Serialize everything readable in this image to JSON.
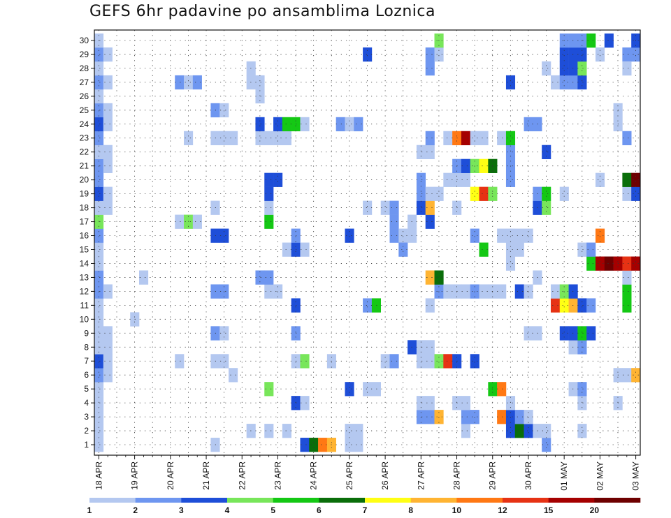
{
  "title": "GEFS 6hr padavine po ansamblima Loznica",
  "chart_data": {
    "type": "heatmap",
    "title": "GEFS 6hr padavine po ansamblima Loznica",
    "y_members": [
      1,
      2,
      3,
      4,
      5,
      6,
      7,
      8,
      9,
      10,
      11,
      12,
      13,
      14,
      15,
      16,
      17,
      18,
      19,
      20,
      21,
      22,
      23,
      24,
      25,
      26,
      27,
      28,
      29,
      30
    ],
    "x_tick_labels": [
      "18 APR",
      "19 APR",
      "20 APR",
      "21 APR",
      "22 APR",
      "23 APR",
      "24 APR",
      "25 APR",
      "26 APR",
      "27 APR",
      "28 APR",
      "29 APR",
      "30 APR",
      "01 MAY",
      "02 MAY",
      "03 MAY"
    ],
    "x_steps": 60,
    "color_scale": {
      "labels": [
        "1",
        "2",
        "3",
        "4",
        "5",
        "6",
        "7",
        "8",
        "10",
        "12",
        "15",
        "20"
      ],
      "colors": [
        "#b4c8f0",
        "#6e96f0",
        "#1e4ed8",
        "#78e65a",
        "#14c814",
        "#0a6e0a",
        "#ffff14",
        "#ffb432",
        "#ff7814",
        "#e63214",
        "#a50000",
        "#6e0000"
      ]
    },
    "cells": [
      [
        0,
        1,
        1
      ],
      [
        0,
        2,
        1
      ],
      [
        0,
        3,
        1
      ],
      [
        0,
        4,
        1
      ],
      [
        0,
        5,
        1
      ],
      [
        0,
        6,
        2
      ],
      [
        0,
        7,
        3
      ],
      [
        0,
        8,
        1
      ],
      [
        0,
        9,
        1
      ],
      [
        0,
        10,
        1
      ],
      [
        0,
        11,
        1
      ],
      [
        0,
        12,
        2
      ],
      [
        0,
        13,
        2
      ],
      [
        0,
        14,
        1
      ],
      [
        0,
        15,
        1
      ],
      [
        0,
        16,
        2
      ],
      [
        0,
        17,
        4
      ],
      [
        0,
        18,
        1
      ],
      [
        0,
        19,
        3
      ],
      [
        0,
        20,
        2
      ],
      [
        0,
        21,
        2
      ],
      [
        0,
        22,
        1
      ],
      [
        0,
        23,
        2
      ],
      [
        0,
        24,
        3
      ],
      [
        0,
        25,
        2
      ],
      [
        0,
        26,
        1
      ],
      [
        0,
        27,
        2
      ],
      [
        0,
        28,
        1
      ],
      [
        0,
        29,
        2
      ],
      [
        0,
        30,
        1
      ],
      [
        1,
        6,
        1
      ],
      [
        1,
        7,
        1
      ],
      [
        1,
        8,
        1
      ],
      [
        1,
        9,
        1
      ],
      [
        1,
        12,
        1
      ],
      [
        1,
        18,
        1
      ],
      [
        1,
        19,
        1
      ],
      [
        1,
        21,
        1
      ],
      [
        1,
        22,
        1
      ],
      [
        1,
        24,
        1
      ],
      [
        1,
        25,
        1
      ],
      [
        1,
        27,
        1
      ],
      [
        1,
        29,
        1
      ],
      [
        4,
        10,
        1
      ],
      [
        5,
        13,
        1
      ],
      [
        9,
        7,
        1
      ],
      [
        9,
        17,
        1
      ],
      [
        9,
        27,
        2
      ],
      [
        10,
        17,
        4
      ],
      [
        10,
        23,
        1
      ],
      [
        10,
        27,
        1
      ],
      [
        11,
        17,
        1
      ],
      [
        11,
        27,
        2
      ],
      [
        13,
        1,
        1
      ],
      [
        13,
        7,
        1
      ],
      [
        13,
        9,
        2
      ],
      [
        13,
        12,
        2
      ],
      [
        13,
        18,
        1
      ],
      [
        13,
        16,
        3
      ],
      [
        13,
        23,
        1
      ],
      [
        13,
        25,
        2
      ],
      [
        14,
        7,
        1
      ],
      [
        14,
        9,
        1
      ],
      [
        14,
        12,
        2
      ],
      [
        14,
        16,
        3
      ],
      [
        14,
        23,
        1
      ],
      [
        14,
        25,
        1
      ],
      [
        15,
        23,
        1
      ],
      [
        15,
        6,
        1
      ],
      [
        17,
        2,
        1
      ],
      [
        17,
        27,
        1
      ],
      [
        17,
        28,
        1
      ],
      [
        18,
        13,
        2
      ],
      [
        18,
        23,
        1
      ],
      [
        18,
        24,
        3
      ],
      [
        18,
        26,
        1
      ],
      [
        18,
        27,
        1
      ],
      [
        19,
        2,
        1
      ],
      [
        19,
        5,
        4
      ],
      [
        19,
        12,
        1
      ],
      [
        19,
        13,
        2
      ],
      [
        19,
        17,
        5
      ],
      [
        19,
        18,
        1
      ],
      [
        19,
        19,
        3
      ],
      [
        19,
        20,
        3
      ],
      [
        19,
        23,
        1
      ],
      [
        20,
        12,
        1
      ],
      [
        20,
        20,
        3
      ],
      [
        20,
        23,
        1
      ],
      [
        20,
        24,
        3
      ],
      [
        21,
        2,
        1
      ],
      [
        21,
        15,
        1
      ],
      [
        21,
        23,
        1
      ],
      [
        21,
        24,
        5
      ],
      [
        22,
        4,
        3
      ],
      [
        22,
        7,
        1
      ],
      [
        22,
        9,
        2
      ],
      [
        22,
        11,
        3
      ],
      [
        22,
        15,
        3
      ],
      [
        22,
        24,
        5
      ],
      [
        22,
        16,
        2
      ],
      [
        23,
        1,
        3
      ],
      [
        23,
        4,
        1
      ],
      [
        23,
        7,
        4
      ],
      [
        23,
        15,
        1
      ],
      [
        23,
        24,
        1
      ],
      [
        24,
        1,
        6
      ],
      [
        25,
        1,
        9
      ],
      [
        26,
        1,
        8
      ],
      [
        26,
        7,
        1
      ],
      [
        27,
        24,
        2
      ],
      [
        28,
        1,
        1
      ],
      [
        28,
        2,
        1
      ],
      [
        28,
        5,
        3
      ],
      [
        28,
        16,
        3
      ],
      [
        28,
        24,
        1
      ],
      [
        29,
        1,
        1
      ],
      [
        29,
        2,
        1
      ],
      [
        29,
        24,
        2
      ],
      [
        30,
        5,
        1
      ],
      [
        30,
        11,
        2
      ],
      [
        30,
        18,
        1
      ],
      [
        30,
        29,
        3
      ],
      [
        31,
        5,
        1
      ],
      [
        31,
        11,
        5
      ],
      [
        32,
        7,
        1
      ],
      [
        32,
        18,
        1
      ],
      [
        33,
        7,
        2
      ],
      [
        33,
        17,
        2
      ],
      [
        33,
        18,
        2
      ],
      [
        33,
        16,
        2
      ],
      [
        34,
        16,
        1
      ],
      [
        34,
        15,
        2
      ],
      [
        35,
        8,
        3
      ],
      [
        35,
        16,
        1
      ],
      [
        35,
        17,
        1
      ],
      [
        36,
        3,
        2
      ],
      [
        36,
        4,
        1
      ],
      [
        36,
        18,
        3
      ],
      [
        36,
        19,
        2
      ],
      [
        36,
        20,
        2
      ],
      [
        36,
        22,
        1
      ],
      [
        36,
        7,
        1
      ],
      [
        36,
        8,
        1
      ],
      [
        37,
        3,
        2
      ],
      [
        37,
        4,
        1
      ],
      [
        37,
        7,
        1
      ],
      [
        37,
        8,
        1
      ],
      [
        37,
        11,
        1
      ],
      [
        37,
        13,
        8
      ],
      [
        37,
        17,
        3
      ],
      [
        37,
        18,
        8
      ],
      [
        37,
        19,
        1
      ],
      [
        37,
        22,
        1
      ],
      [
        37,
        23,
        2
      ],
      [
        37,
        28,
        2
      ],
      [
        37,
        29,
        2
      ],
      [
        38,
        3,
        8
      ],
      [
        38,
        7,
        4
      ],
      [
        38,
        12,
        2
      ],
      [
        38,
        13,
        6
      ],
      [
        38,
        19,
        1
      ],
      [
        38,
        29,
        1
      ],
      [
        38,
        30,
        4
      ],
      [
        39,
        7,
        10
      ],
      [
        39,
        12,
        1
      ],
      [
        39,
        20,
        1
      ],
      [
        39,
        23,
        1
      ],
      [
        40,
        4,
        1
      ],
      [
        40,
        7,
        3
      ],
      [
        40,
        12,
        1
      ],
      [
        40,
        18,
        1
      ],
      [
        40,
        20,
        1
      ],
      [
        40,
        21,
        2
      ],
      [
        40,
        23,
        9
      ],
      [
        41,
        2,
        1
      ],
      [
        41,
        3,
        2
      ],
      [
        41,
        4,
        1
      ],
      [
        41,
        12,
        1
      ],
      [
        41,
        20,
        1
      ],
      [
        41,
        21,
        3
      ],
      [
        41,
        23,
        11
      ],
      [
        42,
        3,
        2
      ],
      [
        42,
        7,
        3
      ],
      [
        42,
        12,
        2
      ],
      [
        42,
        16,
        2
      ],
      [
        42,
        19,
        7
      ],
      [
        42,
        21,
        4
      ],
      [
        42,
        23,
        1
      ],
      [
        43,
        12,
        1
      ],
      [
        43,
        15,
        5
      ],
      [
        43,
        19,
        10
      ],
      [
        43,
        21,
        7
      ],
      [
        43,
        23,
        1
      ],
      [
        44,
        5,
        5
      ],
      [
        44,
        12,
        1
      ],
      [
        44,
        19,
        4
      ],
      [
        44,
        21,
        6
      ],
      [
        45,
        5,
        9
      ],
      [
        45,
        3,
        9
      ],
      [
        45,
        12,
        1
      ],
      [
        45,
        16,
        1
      ],
      [
        45,
        23,
        1
      ],
      [
        46,
        2,
        3
      ],
      [
        46,
        3,
        3
      ],
      [
        46,
        4,
        1
      ],
      [
        46,
        14,
        1
      ],
      [
        46,
        15,
        1
      ],
      [
        46,
        16,
        1
      ],
      [
        46,
        20,
        2
      ],
      [
        46,
        21,
        2
      ],
      [
        46,
        22,
        2
      ],
      [
        46,
        23,
        5
      ],
      [
        46,
        27,
        3
      ],
      [
        46,
        16,
        1
      ],
      [
        47,
        2,
        6
      ],
      [
        47,
        3,
        2
      ],
      [
        47,
        12,
        3
      ],
      [
        47,
        15,
        1
      ],
      [
        47,
        16,
        1
      ],
      [
        48,
        2,
        3
      ],
      [
        48,
        3,
        1
      ],
      [
        48,
        9,
        1
      ],
      [
        48,
        12,
        1
      ],
      [
        48,
        16,
        1
      ],
      [
        48,
        24,
        2
      ],
      [
        49,
        2,
        1
      ],
      [
        49,
        9,
        1
      ],
      [
        49,
        13,
        1
      ],
      [
        49,
        18,
        3
      ],
      [
        49,
        19,
        2
      ],
      [
        49,
        24,
        2
      ],
      [
        50,
        1,
        2
      ],
      [
        50,
        2,
        1
      ],
      [
        50,
        18,
        4
      ],
      [
        50,
        19,
        5
      ],
      [
        50,
        22,
        3
      ],
      [
        50,
        28,
        1
      ],
      [
        51,
        11,
        10
      ],
      [
        51,
        12,
        1
      ],
      [
        51,
        27,
        1
      ],
      [
        52,
        9,
        3
      ],
      [
        52,
        11,
        7
      ],
      [
        52,
        12,
        4
      ],
      [
        52,
        19,
        1
      ],
      [
        52,
        27,
        2
      ],
      [
        52,
        28,
        3
      ],
      [
        52,
        29,
        3
      ],
      [
        52,
        30,
        2
      ],
      [
        53,
        5,
        1
      ],
      [
        53,
        8,
        1
      ],
      [
        53,
        9,
        3
      ],
      [
        53,
        11,
        8
      ],
      [
        53,
        12,
        3
      ],
      [
        53,
        27,
        2
      ],
      [
        53,
        28,
        3
      ],
      [
        53,
        29,
        3
      ],
      [
        53,
        30,
        2
      ],
      [
        54,
        2,
        1
      ],
      [
        54,
        4,
        1
      ],
      [
        54,
        5,
        2
      ],
      [
        54,
        8,
        2
      ],
      [
        54,
        9,
        5
      ],
      [
        54,
        11,
        3
      ],
      [
        54,
        15,
        1
      ],
      [
        54,
        27,
        3
      ],
      [
        54,
        28,
        4
      ],
      [
        54,
        29,
        3
      ],
      [
        54,
        30,
        2
      ],
      [
        55,
        9,
        3
      ],
      [
        55,
        11,
        2
      ],
      [
        55,
        14,
        5
      ],
      [
        55,
        15,
        2
      ],
      [
        55,
        30,
        5
      ],
      [
        56,
        14,
        11
      ],
      [
        56,
        16,
        9
      ],
      [
        56,
        20,
        1
      ],
      [
        56,
        29,
        1
      ],
      [
        57,
        14,
        12
      ],
      [
        57,
        30,
        3
      ],
      [
        58,
        4,
        1
      ],
      [
        58,
        6,
        1
      ],
      [
        58,
        14,
        11
      ],
      [
        58,
        24,
        1
      ],
      [
        58,
        25,
        1
      ],
      [
        59,
        6,
        1
      ],
      [
        59,
        11,
        5
      ],
      [
        59,
        12,
        5
      ],
      [
        59,
        13,
        1
      ],
      [
        59,
        14,
        10
      ],
      [
        59,
        19,
        1
      ],
      [
        59,
        20,
        6
      ],
      [
        59,
        23,
        2
      ],
      [
        59,
        29,
        2
      ],
      [
        59,
        28,
        1
      ],
      [
        60,
        6,
        8
      ],
      [
        60,
        14,
        11
      ],
      [
        60,
        19,
        3
      ],
      [
        60,
        20,
        12
      ],
      [
        60,
        29,
        2
      ],
      [
        60,
        30,
        3
      ]
    ]
  }
}
